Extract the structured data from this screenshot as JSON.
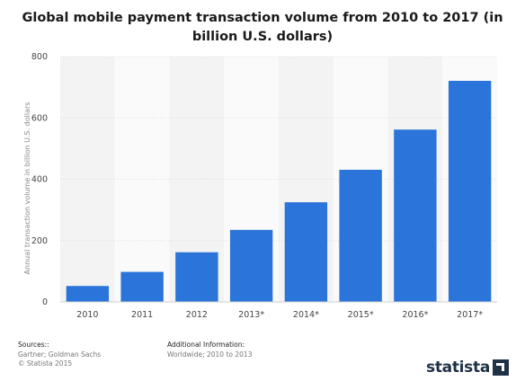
{
  "chart_data": {
    "type": "bar",
    "title": "Global mobile payment transaction volume from 2010 to 2017 (in billion U.S. dollars)",
    "xlabel": "",
    "ylabel": "Annual transaction volume in billion U.S. dollars",
    "categories": [
      "2010",
      "2011",
      "2012",
      "2013*",
      "2014*",
      "2015*",
      "2016*",
      "2017*"
    ],
    "values": [
      52,
      98,
      162,
      235,
      325,
      431,
      562,
      721
    ],
    "ylim": [
      0,
      800
    ],
    "yticks": [
      0,
      200,
      400,
      600,
      800
    ],
    "grid": true,
    "bar_color": "#2b74d9"
  },
  "footer": {
    "sources_title": "Sources::",
    "sources_lines": [
      "Gartner; Goldman Sachs",
      "© Statista 2015"
    ],
    "additional_title": "Additional Information:",
    "additional_line": "Worldwide; 2010 to 2013"
  },
  "logo": {
    "text": "statista",
    "icon": "statista-arrow-icon",
    "color": "#1f3147"
  }
}
